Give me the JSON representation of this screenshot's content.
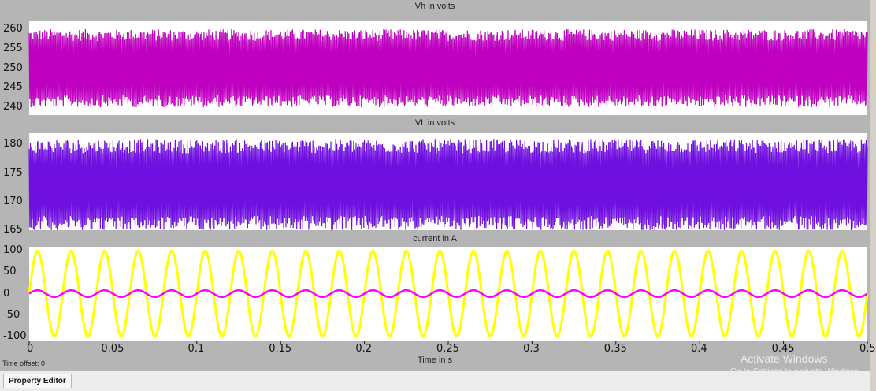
{
  "chart_data": [
    {
      "type": "line",
      "title": "Vh in volts",
      "xlabel": "",
      "ylabel": "",
      "xlim": [
        0,
        0.5
      ],
      "ylim": [
        238,
        262
      ],
      "yticks": [
        "260",
        "255",
        "250",
        "245",
        "240"
      ],
      "series": [
        {
          "color": "#c000c0",
          "band": {
            "center": 250,
            "half_amplitude": [
              7,
              10
            ]
          }
        }
      ]
    },
    {
      "type": "line",
      "title": "VL in volts",
      "xlabel": "",
      "ylabel": "",
      "xlim": [
        0,
        0.5
      ],
      "ylim": [
        165,
        182
      ],
      "yticks": [
        "180",
        "175",
        "170",
        "165"
      ],
      "series": [
        {
          "color": "#7010e0",
          "band": {
            "center": 173,
            "half_amplitude": [
              5.5,
              8
            ]
          }
        }
      ]
    },
    {
      "type": "line",
      "title": "current in A",
      "xlabel": "Time in s",
      "ylabel": "",
      "xlim": [
        0,
        0.5
      ],
      "ylim": [
        -110,
        110
      ],
      "yticks": [
        "100",
        "50",
        "0",
        "-50",
        "-100"
      ],
      "xticks": [
        "0",
        "0.05",
        "0.1",
        "0.15",
        "0.2",
        "0.25",
        "0.3",
        "0.35",
        "0.4",
        "0.45",
        "0.5"
      ],
      "series": [
        {
          "color": "#ffff00",
          "amplitude": 100,
          "frequency_hz": 50
        },
        {
          "color": "#ff00ff",
          "amplitude": 8,
          "frequency_hz": 50
        }
      ]
    }
  ],
  "time_offset": {
    "label": "Time offset:",
    "value": "0"
  },
  "watermark": {
    "title": "Activate Windows",
    "subtitle": "Go to Settings to activate Windows."
  },
  "property_editor": {
    "tab_label": "Property Editor"
  }
}
